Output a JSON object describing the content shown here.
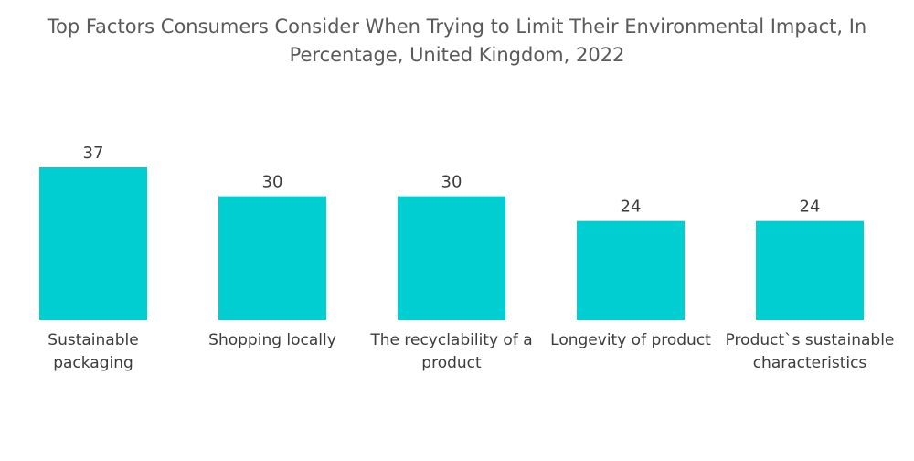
{
  "chart_data": {
    "type": "bar",
    "title": "Top Factors Consumers Consider When Trying to Limit Their Environmental Impact, In Percentage, United Kingdom, 2022",
    "categories": [
      [
        "Sustainable",
        "packaging"
      ],
      [
        "Shopping locally"
      ],
      [
        "The recyclability of a",
        "product"
      ],
      [
        "Longevity of product"
      ],
      [
        "Product`s sustainable",
        "characteristics"
      ]
    ],
    "values": [
      37,
      30,
      30,
      24,
      24
    ],
    "value_labels": [
      "37",
      "30",
      "30",
      "24",
      "24"
    ],
    "bar_color": "#00CED1",
    "xlabel": "",
    "ylabel": "",
    "ylim": [
      0,
      37
    ],
    "grid": false,
    "legend": "none"
  }
}
